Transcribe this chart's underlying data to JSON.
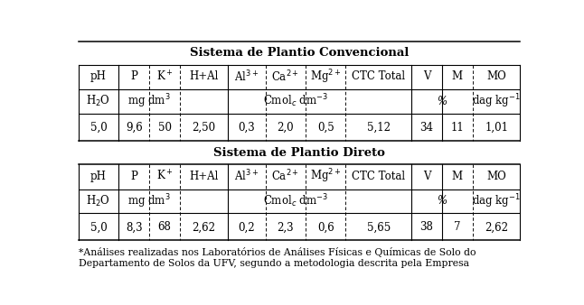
{
  "title1": "Sistema de Plantio Convencional",
  "title2": "Sistema de Plantio Direto",
  "footnote_line1": "*Análises realizadas nos Laboratórios de Análises Físicas e Químicas de Solo do",
  "footnote_line2": "Departamento de Solos da UFV, segundo a metodologia descrita pela Empresa",
  "headers": [
    "pH",
    "P",
    "K$^+$",
    "H+Al",
    "Al$^{3+}$",
    "Ca$^{2+}$",
    "Mg$^{2+}$",
    "CTC Total",
    "V",
    "M",
    "MO"
  ],
  "unit_h2o": "H$_2$O",
  "unit_mgdm": "mg dm$^3$",
  "unit_cmol": "Cmol$_c$ dm$^{-3}$",
  "unit_pct": "%",
  "unit_dag": "dag kg$^{-1}$",
  "row1": [
    "5,0",
    "9,6",
    "50",
    "2,50",
    "0,3",
    "2,0",
    "0,5",
    "5,12",
    "34",
    "11",
    "1,01"
  ],
  "row2": [
    "5,0",
    "8,3",
    "68",
    "2,62",
    "0,2",
    "2,3",
    "0,6",
    "5,65",
    "38",
    "7",
    "2,62"
  ],
  "col_widths_rel": [
    5.5,
    4.2,
    4.2,
    6.5,
    5.2,
    5.5,
    5.5,
    9.0,
    4.2,
    4.2,
    6.5
  ],
  "dashed_after": [
    1,
    2,
    4,
    5,
    6,
    9
  ],
  "solid_after": [
    0,
    3,
    7,
    10
  ],
  "background_color": "#ffffff",
  "text_color": "#000000",
  "font_size": 8.5,
  "title_font_size": 9.5
}
